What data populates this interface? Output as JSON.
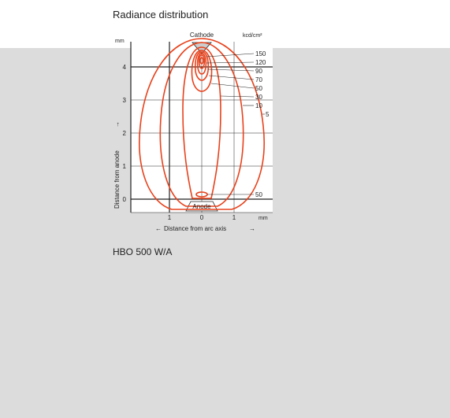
{
  "title": "Radiance distribution",
  "caption": "HBO 500 W/A",
  "colors": {
    "contour": "#e8411b",
    "panel_background": "#dcdcdc",
    "background": "#ffffff"
  },
  "diagram": {
    "cathode_label": "Cathode",
    "anode_label": "Anode",
    "y_unit": "mm",
    "x_unit": "mm",
    "radiance_unit": "kcd/cm²",
    "y_axis_label": "Distance from anode",
    "x_axis_label": "Distance from arc axis",
    "x_arrow_left": "←",
    "x_arrow_right": "→",
    "y_arrow": "→",
    "y_ticks": [
      "4",
      "3",
      "2",
      "1",
      "0"
    ],
    "x_ticks": [
      "1",
      "0",
      "1"
    ],
    "contour_labels": [
      "150",
      "120",
      "90",
      "70",
      "50",
      "30",
      "10",
      "5"
    ],
    "anode_contour_label": "50"
  }
}
